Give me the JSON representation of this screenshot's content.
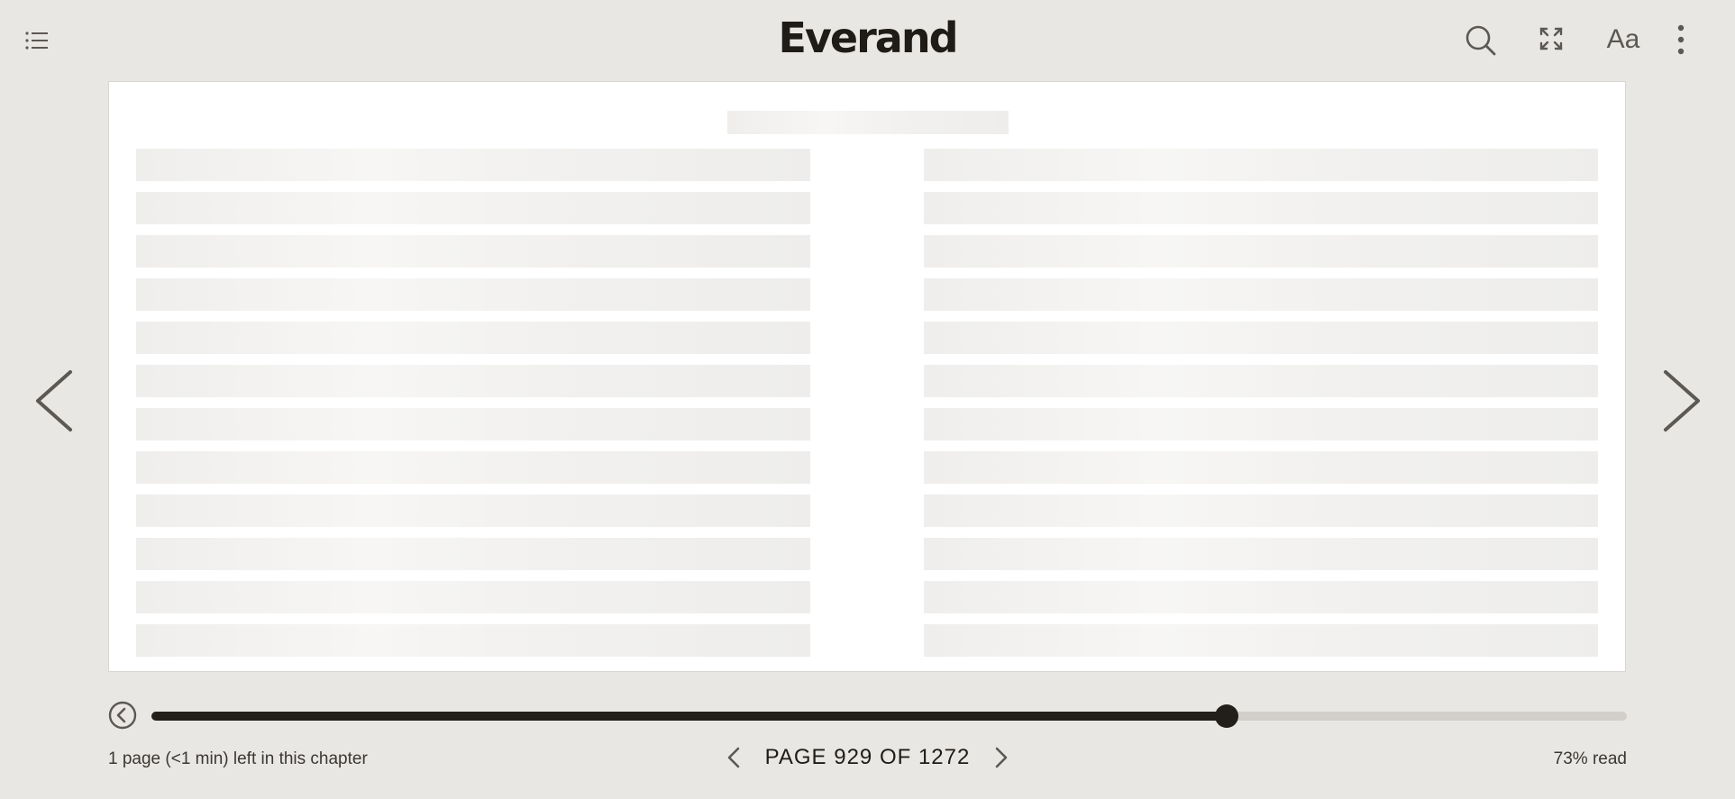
{
  "app": {
    "logo": "Everand"
  },
  "toolbar": {
    "toc_icon": "list-icon",
    "search_icon": "search-icon",
    "fullscreen_icon": "fullscreen-icon",
    "font_settings_label": "Aa",
    "more_icon": "more-vertical-icon"
  },
  "reader": {
    "loading_lines_per_column": 12,
    "prev_icon": "chevron-left-icon",
    "next_icon": "chevron-right-icon"
  },
  "progress": {
    "back_icon": "back-circle-icon",
    "position_fraction": 0.73,
    "page_label": "PAGE 929 OF 1272",
    "chapter_remaining": "1 page (<1 min) left in this chapter",
    "percent_read": "73% read"
  },
  "colors": {
    "background": "#e9e7e4",
    "accent": "#221e19",
    "track": "#d2cfcb"
  }
}
